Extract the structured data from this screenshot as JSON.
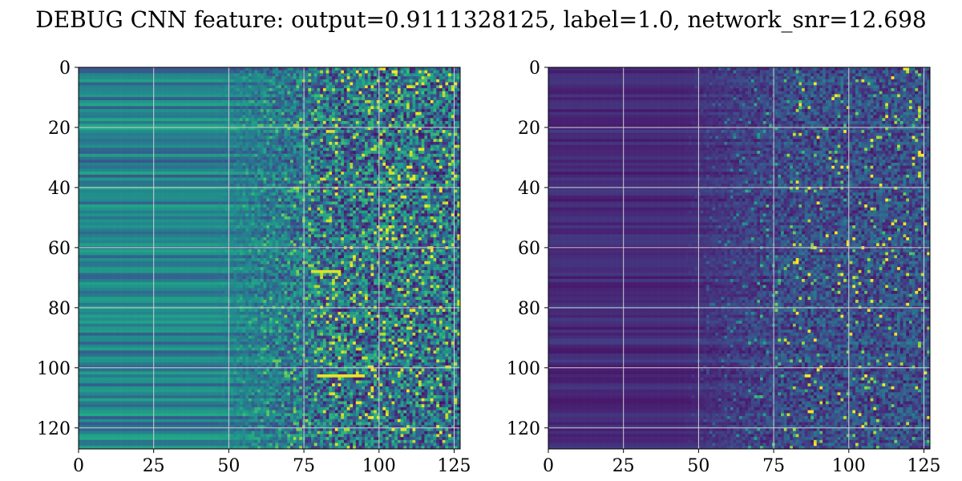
{
  "figure_title": "DEBUG CNN feature: output=0.9111328125, label=1.0, network_snr=12.698",
  "chart_data": [
    {
      "type": "heatmap",
      "colormap": "viridis",
      "rows": 128,
      "cols": 128,
      "xlim": [
        0,
        127
      ],
      "ylim": [
        127,
        0
      ],
      "y_inverted": true,
      "grid": true,
      "x_ticks": [
        0,
        25,
        50,
        75,
        100,
        125
      ],
      "y_ticks": [
        0,
        20,
        40,
        60,
        80,
        100,
        120
      ],
      "x_tick_labels": [
        "0",
        "25",
        "50",
        "75",
        "100",
        "125"
      ],
      "y_tick_labels": [
        "0",
        "20",
        "40",
        "60",
        "80",
        "100",
        "120"
      ]
    },
    {
      "type": "heatmap",
      "colormap": "viridis",
      "rows": 128,
      "cols": 128,
      "xlim": [
        0,
        127
      ],
      "ylim": [
        127,
        0
      ],
      "y_inverted": true,
      "grid": true,
      "x_ticks": [
        0,
        25,
        50,
        75,
        100,
        125
      ],
      "y_ticks": [
        0,
        20,
        40,
        60,
        80,
        100,
        120
      ],
      "x_tick_labels": [
        "0",
        "25",
        "50",
        "75",
        "100",
        "125"
      ],
      "y_tick_labels": [
        "0",
        "20",
        "40",
        "60",
        "80",
        "100",
        "120"
      ]
    }
  ]
}
